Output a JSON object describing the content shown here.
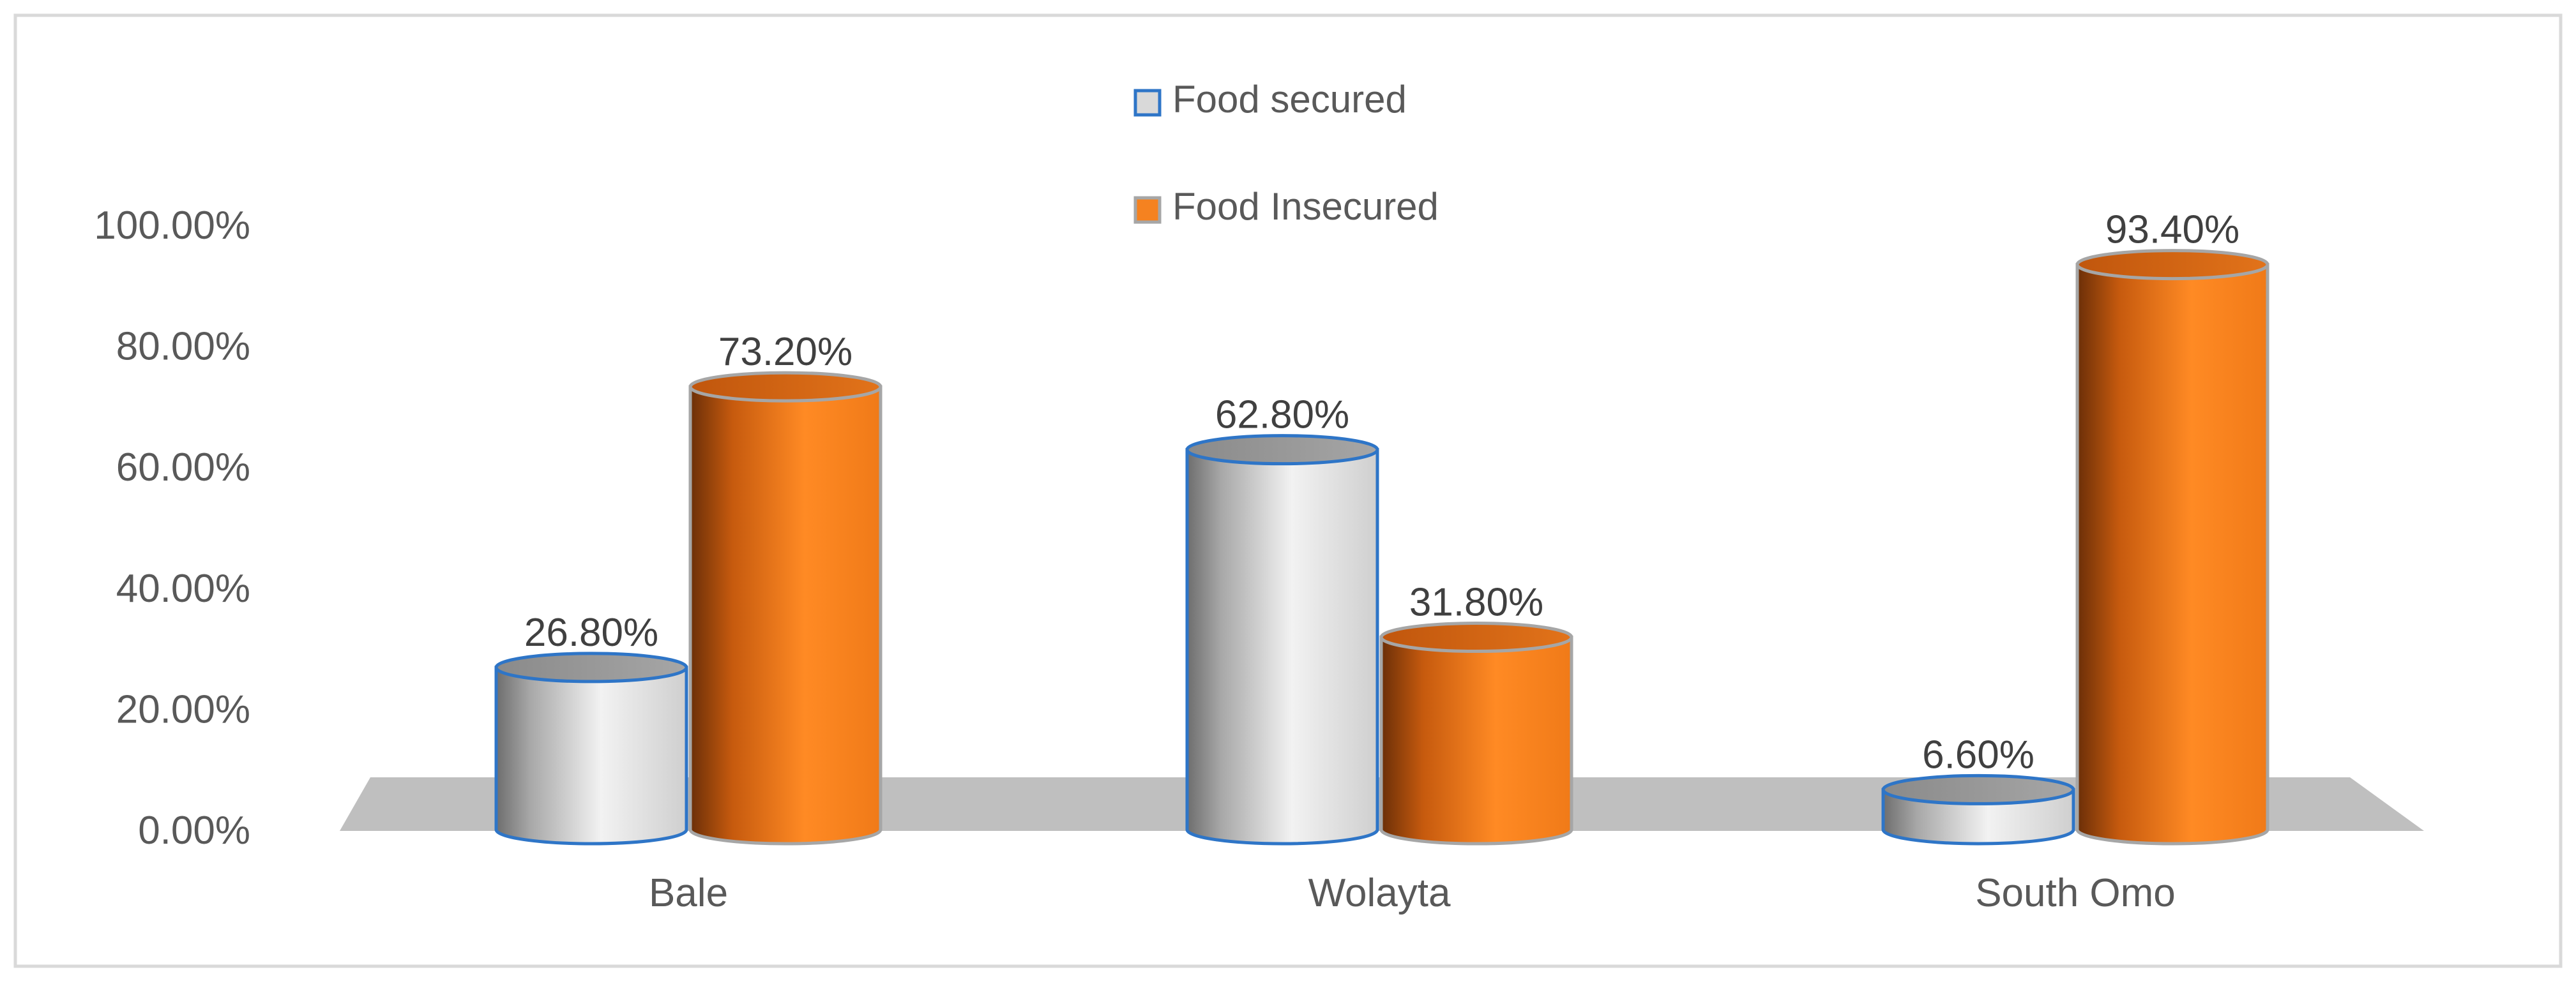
{
  "chart_data": {
    "type": "bar",
    "categories": [
      "Bale",
      "Wolayta",
      "South Omo"
    ],
    "series": [
      {
        "name": "Food secured",
        "values": [
          26.8,
          62.8,
          6.6
        ],
        "labels": [
          "26.80%",
          "62.80%",
          "6.60%"
        ],
        "color": "#d9d9d9",
        "edge": "#2e75c7"
      },
      {
        "name": "Food Insecured",
        "values": [
          73.2,
          31.8,
          93.4
        ],
        "labels": [
          "73.20%",
          "31.80%",
          "93.40%"
        ],
        "color": "#f58220",
        "edge": "#a6a6a6"
      }
    ],
    "y_ticks": [
      "0.00%",
      "20.00%",
      "40.00%",
      "60.00%",
      "80.00%",
      "100.00%"
    ],
    "ylim": [
      0,
      100
    ],
    "legend_position": "top-center",
    "grid": false,
    "style": "3d-cylinder"
  }
}
